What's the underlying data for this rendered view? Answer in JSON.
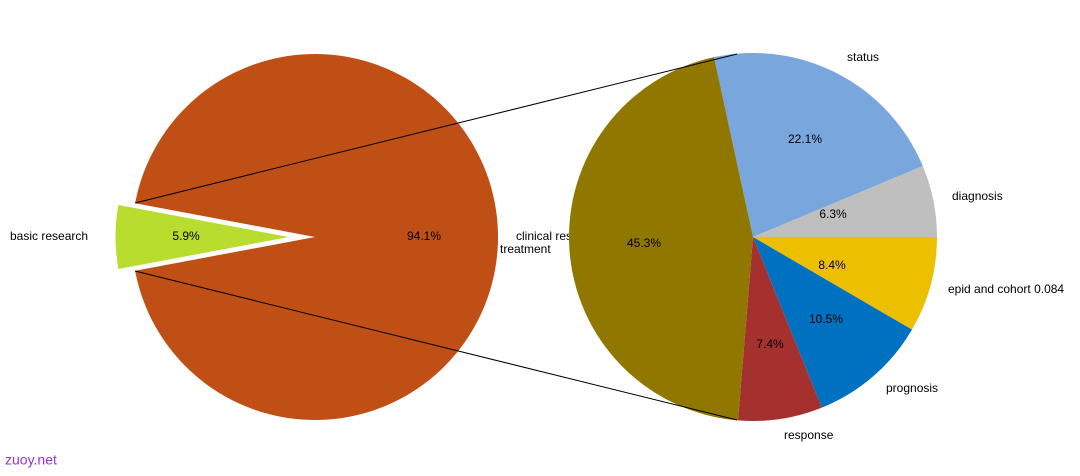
{
  "chart_data": [
    {
      "type": "pie",
      "categories": [
        "basic  research",
        "clinical research"
      ],
      "values": [
        5.9,
        94.1
      ],
      "value_labels": [
        "5.9%",
        "94.1%"
      ],
      "colors": [
        "#b8dd2e",
        "#c04f15"
      ]
    },
    {
      "type": "pie",
      "categories": [
        "status",
        "diagnosis",
        "epid and cohort 0.084",
        "prognosis",
        "response",
        "treatment"
      ],
      "values": [
        22.1,
        6.3,
        8.4,
        10.5,
        7.4,
        45.3
      ],
      "value_labels": [
        "22.1%",
        "6.3%",
        "8.4%",
        "10.5%",
        "7.4%",
        "45.3%"
      ],
      "colors": [
        "#79a6dc",
        "#bfbfbf",
        "#ecc000",
        "#0070c0",
        "#a5312f",
        "#8f7700"
      ]
    }
  ],
  "watermark": "zuoy.net"
}
